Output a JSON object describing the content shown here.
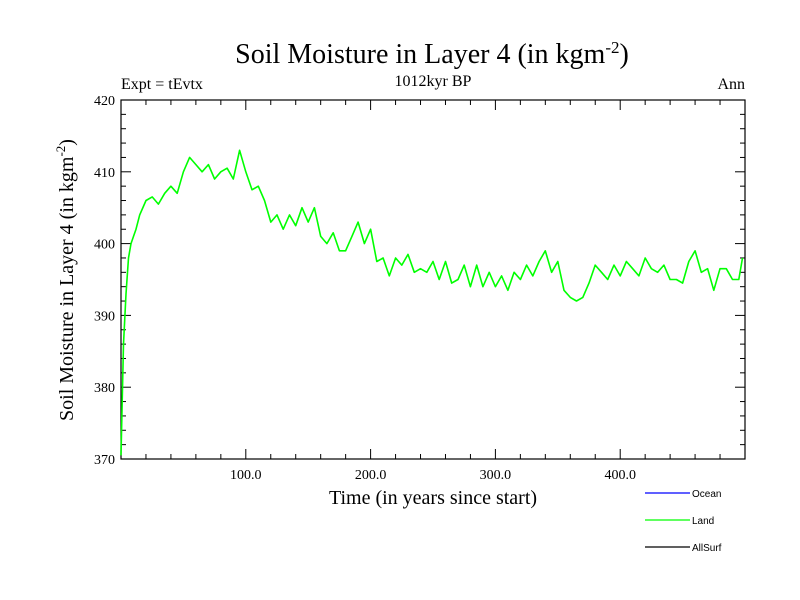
{
  "chart_data": {
    "type": "line",
    "title": "Soil Moisture in Layer 4 (in kgm",
    "title_sup": "-2",
    "title_close": ")",
    "subtitle_left": "Expt = tEvtx",
    "subtitle_center": "1012kyr BP",
    "subtitle_right": "Ann",
    "xlabel": "Time (in years since start)",
    "ylabel": "Soil Moisture in Layer 4 (in kgm",
    "ylabel_sup": "-2",
    "ylabel_close": ")",
    "xlim": [
      0,
      500
    ],
    "ylim": [
      370,
      420
    ],
    "xticks": [
      100,
      200,
      300,
      400
    ],
    "xtick_labels": [
      "100.0",
      "200.0",
      "300.0",
      "400.0"
    ],
    "yticks": [
      370,
      380,
      390,
      400,
      410,
      420
    ],
    "ytick_labels": [
      "370",
      "380",
      "390",
      "400",
      "410",
      "420"
    ],
    "legend": [
      {
        "name": "Ocean",
        "color": "#0000ff"
      },
      {
        "name": "Land",
        "color": "#00ff00"
      },
      {
        "name": "AllSurf",
        "color": "#000000"
      }
    ],
    "series": [
      {
        "name": "Land",
        "color": "#00ff00",
        "x": [
          0,
          1,
          2,
          4,
          6,
          8,
          10,
          12,
          15,
          20,
          25,
          30,
          35,
          40,
          45,
          50,
          55,
          60,
          65,
          70,
          75,
          80,
          85,
          90,
          95,
          100,
          105,
          110,
          115,
          120,
          125,
          130,
          135,
          140,
          145,
          150,
          155,
          160,
          165,
          170,
          175,
          180,
          185,
          190,
          195,
          200,
          205,
          210,
          215,
          220,
          225,
          230,
          235,
          240,
          245,
          250,
          255,
          260,
          265,
          270,
          275,
          280,
          285,
          290,
          295,
          300,
          305,
          310,
          315,
          320,
          325,
          330,
          335,
          340,
          345,
          350,
          355,
          360,
          365,
          370,
          375,
          380,
          385,
          390,
          395,
          400,
          405,
          410,
          415,
          420,
          425,
          430,
          435,
          440,
          445,
          450,
          455,
          460,
          465,
          470,
          475,
          480,
          485,
          490,
          495,
          498
        ],
        "values": [
          370.5,
          378,
          386,
          393,
          398,
          400,
          401,
          402,
          404,
          406,
          406.5,
          405.5,
          407,
          408,
          407,
          410,
          412,
          411,
          410,
          411,
          409,
          410,
          410.5,
          409,
          413,
          410,
          407.5,
          408,
          406,
          403,
          404,
          402,
          404,
          402.5,
          405,
          403,
          405,
          401,
          400,
          401.5,
          399,
          399,
          401,
          403,
          400,
          402,
          397.5,
          398,
          395.5,
          398,
          397,
          398.5,
          396,
          396.5,
          396,
          397.5,
          395,
          397.5,
          394.5,
          395,
          397,
          394,
          397,
          394,
          396,
          394,
          395.5,
          393.5,
          396,
          395,
          397,
          395.5,
          397.5,
          399,
          396,
          397.5,
          393.5,
          392.5,
          392,
          392.5,
          394.5,
          397,
          396,
          395,
          397,
          395.5,
          397.5,
          396.5,
          395.5,
          398,
          396.5,
          396,
          397,
          395,
          395,
          394.5,
          397.5,
          399,
          396,
          396.5,
          393.5,
          396.5,
          396.5,
          395,
          395,
          398
        ]
      }
    ]
  }
}
